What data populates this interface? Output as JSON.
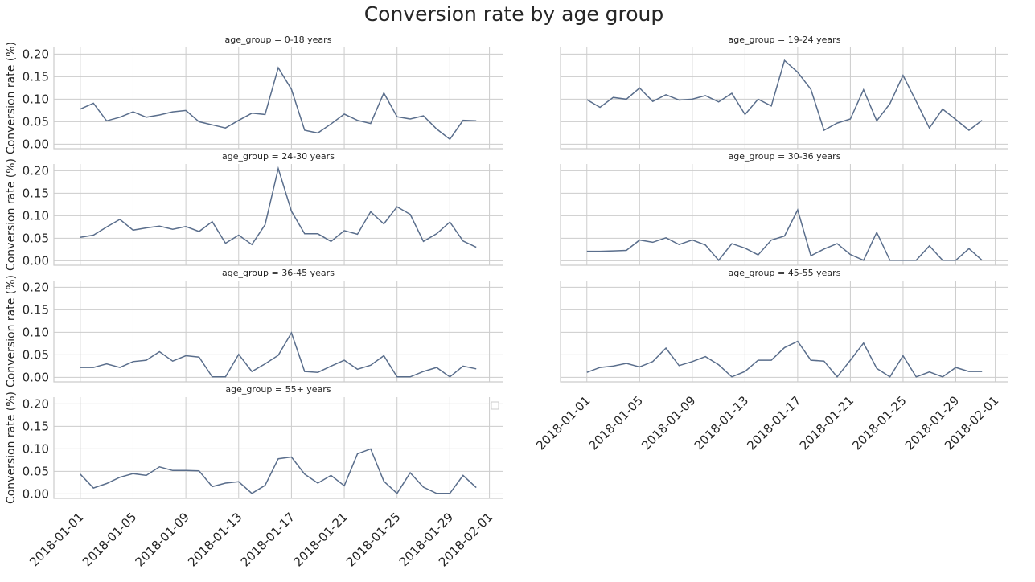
{
  "chart_data": {
    "type": "line",
    "title": "Conversion rate by age group",
    "ylabel": "Conversion rate (%)",
    "ylim": [
      -0.01,
      0.215
    ],
    "yticks": [
      "0.00",
      "0.05",
      "0.10",
      "0.15",
      "0.20"
    ],
    "xticks": [
      "2018-01-01",
      "2018-01-05",
      "2018-01-09",
      "2018-01-13",
      "2018-01-17",
      "2018-01-21",
      "2018-01-25",
      "2018-01-29",
      "2018-02-01"
    ],
    "xlim": [
      "2017-12-30",
      "2018-02-02"
    ],
    "grid": true,
    "x": [
      "2018-01-01",
      "2018-01-02",
      "2018-01-03",
      "2018-01-04",
      "2018-01-05",
      "2018-01-06",
      "2018-01-07",
      "2018-01-08",
      "2018-01-09",
      "2018-01-10",
      "2018-01-11",
      "2018-01-12",
      "2018-01-13",
      "2018-01-14",
      "2018-01-15",
      "2018-01-16",
      "2018-01-17",
      "2018-01-18",
      "2018-01-19",
      "2018-01-20",
      "2018-01-21",
      "2018-01-22",
      "2018-01-23",
      "2018-01-24",
      "2018-01-25",
      "2018-01-26",
      "2018-01-27",
      "2018-01-28",
      "2018-01-29",
      "2018-01-30",
      "2018-01-31"
    ],
    "series": [
      {
        "name": "age_group = 0-18 years",
        "values": [
          0.078,
          0.091,
          0.052,
          0.06,
          0.072,
          0.06,
          0.065,
          0.072,
          0.075,
          0.05,
          0.043,
          0.036,
          0.053,
          0.069,
          0.066,
          0.17,
          0.122,
          0.031,
          0.025,
          0.045,
          0.067,
          0.053,
          0.046,
          0.114,
          0.061,
          0.056,
          0.063,
          0.034,
          0.011,
          0.053,
          0.052
        ]
      },
      {
        "name": "age_group = 19-24 years",
        "values": [
          0.099,
          0.082,
          0.104,
          0.1,
          0.125,
          0.095,
          0.11,
          0.098,
          0.1,
          0.108,
          0.094,
          0.113,
          0.066,
          0.1,
          0.085,
          0.186,
          0.16,
          0.122,
          0.031,
          0.047,
          0.056,
          0.121,
          0.052,
          0.09,
          0.153,
          0.095,
          0.036,
          0.078,
          0.055,
          0.031,
          0.053
        ]
      },
      {
        "name": "age_group = 24-30 years",
        "values": [
          0.052,
          0.057,
          0.075,
          0.092,
          0.068,
          0.073,
          0.077,
          0.07,
          0.076,
          0.065,
          0.087,
          0.039,
          0.057,
          0.036,
          0.08,
          0.205,
          0.11,
          0.06,
          0.06,
          0.043,
          0.067,
          0.059,
          0.109,
          0.082,
          0.12,
          0.103,
          0.043,
          0.06,
          0.086,
          0.044,
          0.03
        ]
      },
      {
        "name": "age_group = 30-36 years",
        "values": [
          0.021,
          0.021,
          0.022,
          0.023,
          0.046,
          0.041,
          0.051,
          0.036,
          0.046,
          0.035,
          0.001,
          0.038,
          0.028,
          0.013,
          0.046,
          0.055,
          0.113,
          0.011,
          0.026,
          0.038,
          0.014,
          0.001,
          0.063,
          0.001,
          0.001,
          0.001,
          0.033,
          0.001,
          0.001,
          0.027,
          0.001
        ]
      },
      {
        "name": "age_group = 36-45 years",
        "values": [
          0.022,
          0.022,
          0.03,
          0.022,
          0.035,
          0.038,
          0.057,
          0.036,
          0.048,
          0.045,
          0.001,
          0.001,
          0.051,
          0.013,
          0.03,
          0.049,
          0.099,
          0.013,
          0.011,
          0.025,
          0.038,
          0.018,
          0.027,
          0.048,
          0.001,
          0.001,
          0.013,
          0.022,
          0.001,
          0.025,
          0.019
        ]
      },
      {
        "name": "age_group = 45-55 years",
        "values": [
          0.011,
          0.022,
          0.025,
          0.031,
          0.023,
          0.035,
          0.065,
          0.026,
          0.035,
          0.046,
          0.028,
          0.001,
          0.013,
          0.038,
          0.038,
          0.066,
          0.08,
          0.038,
          0.036,
          0.001,
          0.038,
          0.076,
          0.02,
          0.001,
          0.048,
          0.001,
          0.012,
          0.001,
          0.022,
          0.013,
          0.013
        ]
      },
      {
        "name": "age_group = 55+ years",
        "values": [
          0.044,
          0.013,
          0.023,
          0.037,
          0.045,
          0.041,
          0.06,
          0.052,
          0.052,
          0.051,
          0.016,
          0.024,
          0.027,
          0.001,
          0.019,
          0.078,
          0.082,
          0.044,
          0.024,
          0.041,
          0.018,
          0.089,
          0.1,
          0.028,
          0.001,
          0.047,
          0.015,
          0.001,
          0.001,
          0.041,
          0.014
        ]
      }
    ]
  },
  "colors": {
    "line": "#5a6e8c",
    "grid": "#cccccc",
    "text": "#262626"
  }
}
